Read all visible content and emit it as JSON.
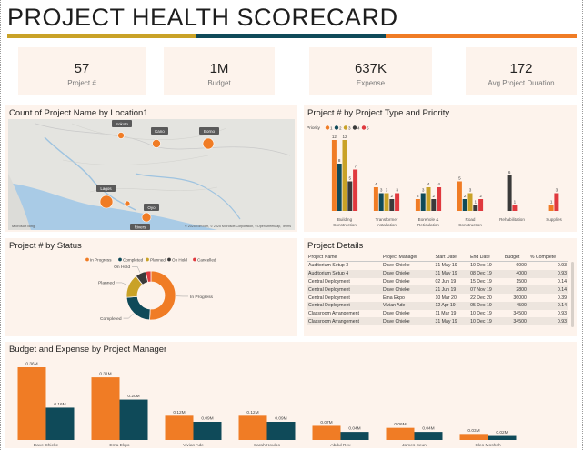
{
  "header": {
    "title": "PROJECT HEALTH SCORECARD"
  },
  "colors": {
    "gold": "#c9a227",
    "teal": "#0f4a59",
    "orange": "#f07c25",
    "dark": "#3a3a3a",
    "red": "#e0393e",
    "panel": "#fdf3ec"
  },
  "kpis": [
    {
      "value": "57",
      "label": "Project #"
    },
    {
      "value": "1M",
      "label": "Budget"
    },
    {
      "value": "637K",
      "label": "Expense"
    },
    {
      "value": "172",
      "label": "Avg Project Duration"
    }
  ],
  "map": {
    "title": "Count of Project Name by Location1",
    "locations": [
      "Sokoto",
      "Kano",
      "Borno",
      "Lagos",
      "Oyo",
      "Rivers"
    ],
    "attribution": "© 2025 TomTom, © 2025 Microsoft Corporation, ©OpenStreetMap, Terms",
    "logo": "Microsoft Bing"
  },
  "type_priority": {
    "title": "Project # by Project Type and Priority",
    "legend_title": "Priority",
    "legend": [
      "1",
      "2",
      "3",
      "4",
      "5"
    ],
    "chart_data": {
      "type": "bar",
      "categories": [
        "Building Construction",
        "Transformer Installation",
        "Borehole & Reticulation",
        "Road Construction",
        "Rehabilitation",
        "Supplies"
      ],
      "series": [
        {
          "name": "1",
          "values": [
            12,
            4,
            2,
            5,
            null,
            1
          ]
        },
        {
          "name": "2",
          "values": [
            8,
            3,
            3,
            2,
            null,
            null
          ]
        },
        {
          "name": "3",
          "values": [
            12,
            3,
            4,
            3,
            null,
            null
          ]
        },
        {
          "name": "4",
          "values": [
            5,
            2,
            2,
            1,
            6,
            null
          ]
        },
        {
          "name": "5",
          "values": [
            7,
            3,
            4,
            2,
            1,
            3
          ]
        }
      ]
    }
  },
  "status": {
    "title": "Project # by Status",
    "legend": [
      "In Progress",
      "Completed",
      "Planned",
      "On Hold",
      "Cancelled"
    ],
    "chart_data": {
      "type": "pie",
      "labels": [
        "In Progress",
        "Completed",
        "Planned",
        "On Hold",
        "Cancelled"
      ],
      "values": [
        29,
        13,
        9,
        4,
        2
      ]
    },
    "slice_labels": [
      "In Progress",
      "Completed",
      "Planned",
      "On Hold"
    ]
  },
  "details": {
    "title": "Project Details",
    "columns": [
      "Project Name",
      "Project Manager",
      "Start Date",
      "End Date",
      "Budget",
      "% Complete"
    ],
    "rows": [
      [
        "Auditorium Setup 3",
        "Dave Chieke",
        "31 May 19",
        "10 Dec 19",
        "6000",
        "0.93"
      ],
      [
        "Auditorium Setup 4",
        "Dave Chieke",
        "31 May 19",
        "08 Dec 19",
        "4000",
        "0.93"
      ],
      [
        "Central Deployment",
        "Dave Chieke",
        "02 Jun 19",
        "15 Dec 19",
        "1500",
        "0.14"
      ],
      [
        "Central Deployment",
        "Dave Chieke",
        "21 Jun 19",
        "07 Nov 19",
        "2800",
        "0.14"
      ],
      [
        "Central Deployment",
        "Ema Ekpo",
        "10 Mar 20",
        "22 Dec 20",
        "36000",
        "0.39"
      ],
      [
        "Central Deployment",
        "Vivian Ade",
        "12 Apr 19",
        "05 Dec 19",
        "4500",
        "0.14"
      ],
      [
        "Classroom Arrangement",
        "Dave Chieke",
        "11 Mar 19",
        "10 Dec 19",
        "34500",
        "0.93"
      ],
      [
        "Classroom Arrangement",
        "Dave Chieke",
        "31 May 19",
        "10 Dec 19",
        "34500",
        "0.93"
      ]
    ]
  },
  "budget_expense": {
    "title": "Budget and Expense by Project Manager",
    "chart_data": {
      "type": "bar",
      "categories": [
        "Dave Chieke",
        "Ema Ekpo",
        "Vivian Ade",
        "Sarah Kouloo",
        "Abdul Rex",
        "James Seun",
        "Cleo Moshoh"
      ],
      "series": [
        {
          "name": "Budget",
          "values": [
            0.36,
            0.31,
            0.12,
            0.12,
            0.07,
            0.06,
            0.03
          ]
        },
        {
          "name": "Expense",
          "values": [
            0.16,
            0.2,
            0.09,
            0.09,
            0.04,
            0.04,
            0.02
          ]
        }
      ],
      "data_labels": [
        [
          "0.36M",
          "0.16M"
        ],
        [
          "0.31M",
          "0.20M"
        ],
        [
          "0.12M",
          "0.09M"
        ],
        [
          "0.12M",
          "0.09M"
        ],
        [
          "0.07M",
          "0.04M"
        ],
        [
          "0.06M",
          "0.04M"
        ],
        [
          "0.03M",
          "0.02M"
        ]
      ]
    }
  }
}
